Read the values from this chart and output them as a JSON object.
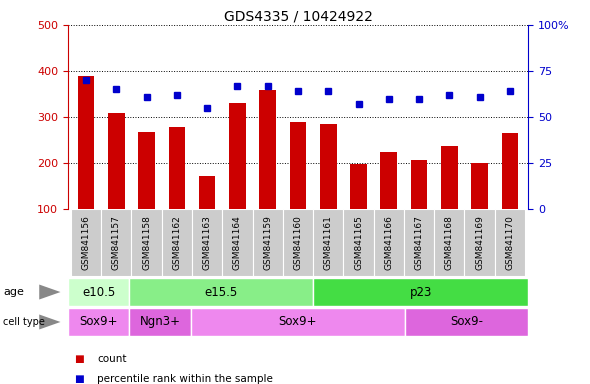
{
  "title": "GDS4335 / 10424922",
  "samples": [
    "GSM841156",
    "GSM841157",
    "GSM841158",
    "GSM841162",
    "GSM841163",
    "GSM841164",
    "GSM841159",
    "GSM841160",
    "GSM841161",
    "GSM841165",
    "GSM841166",
    "GSM841167",
    "GSM841168",
    "GSM841169",
    "GSM841170"
  ],
  "counts": [
    390,
    310,
    268,
    278,
    172,
    330,
    358,
    290,
    285,
    198,
    225,
    207,
    237,
    200,
    265
  ],
  "percentiles": [
    70,
    65,
    61,
    62,
    55,
    67,
    67,
    64,
    64,
    57,
    60,
    60,
    62,
    61,
    64
  ],
  "bar_color": "#cc0000",
  "dot_color": "#0000cc",
  "ylim_left": [
    100,
    500
  ],
  "ylim_right": [
    0,
    100
  ],
  "yticks_left": [
    100,
    200,
    300,
    400,
    500
  ],
  "yticks_right": [
    0,
    25,
    50,
    75,
    100
  ],
  "age_groups": [
    {
      "label": "e10.5",
      "start": 0,
      "end": 2,
      "color": "#ccffcc"
    },
    {
      "label": "e15.5",
      "start": 2,
      "end": 8,
      "color": "#88ee88"
    },
    {
      "label": "p23",
      "start": 8,
      "end": 15,
      "color": "#44dd44"
    }
  ],
  "cell_groups": [
    {
      "label": "Sox9+",
      "start": 0,
      "end": 2,
      "color": "#ee88ee"
    },
    {
      "label": "Ngn3+",
      "start": 2,
      "end": 4,
      "color": "#dd66dd"
    },
    {
      "label": "Sox9+",
      "start": 4,
      "end": 11,
      "color": "#ee88ee"
    },
    {
      "label": "Sox9-",
      "start": 11,
      "end": 15,
      "color": "#dd66dd"
    }
  ],
  "xaxis_bg": "#cccccc",
  "legend_count_color": "#cc0000",
  "legend_dot_color": "#0000cc",
  "age_label_color": "#888888",
  "celltype_label_color": "#888888"
}
